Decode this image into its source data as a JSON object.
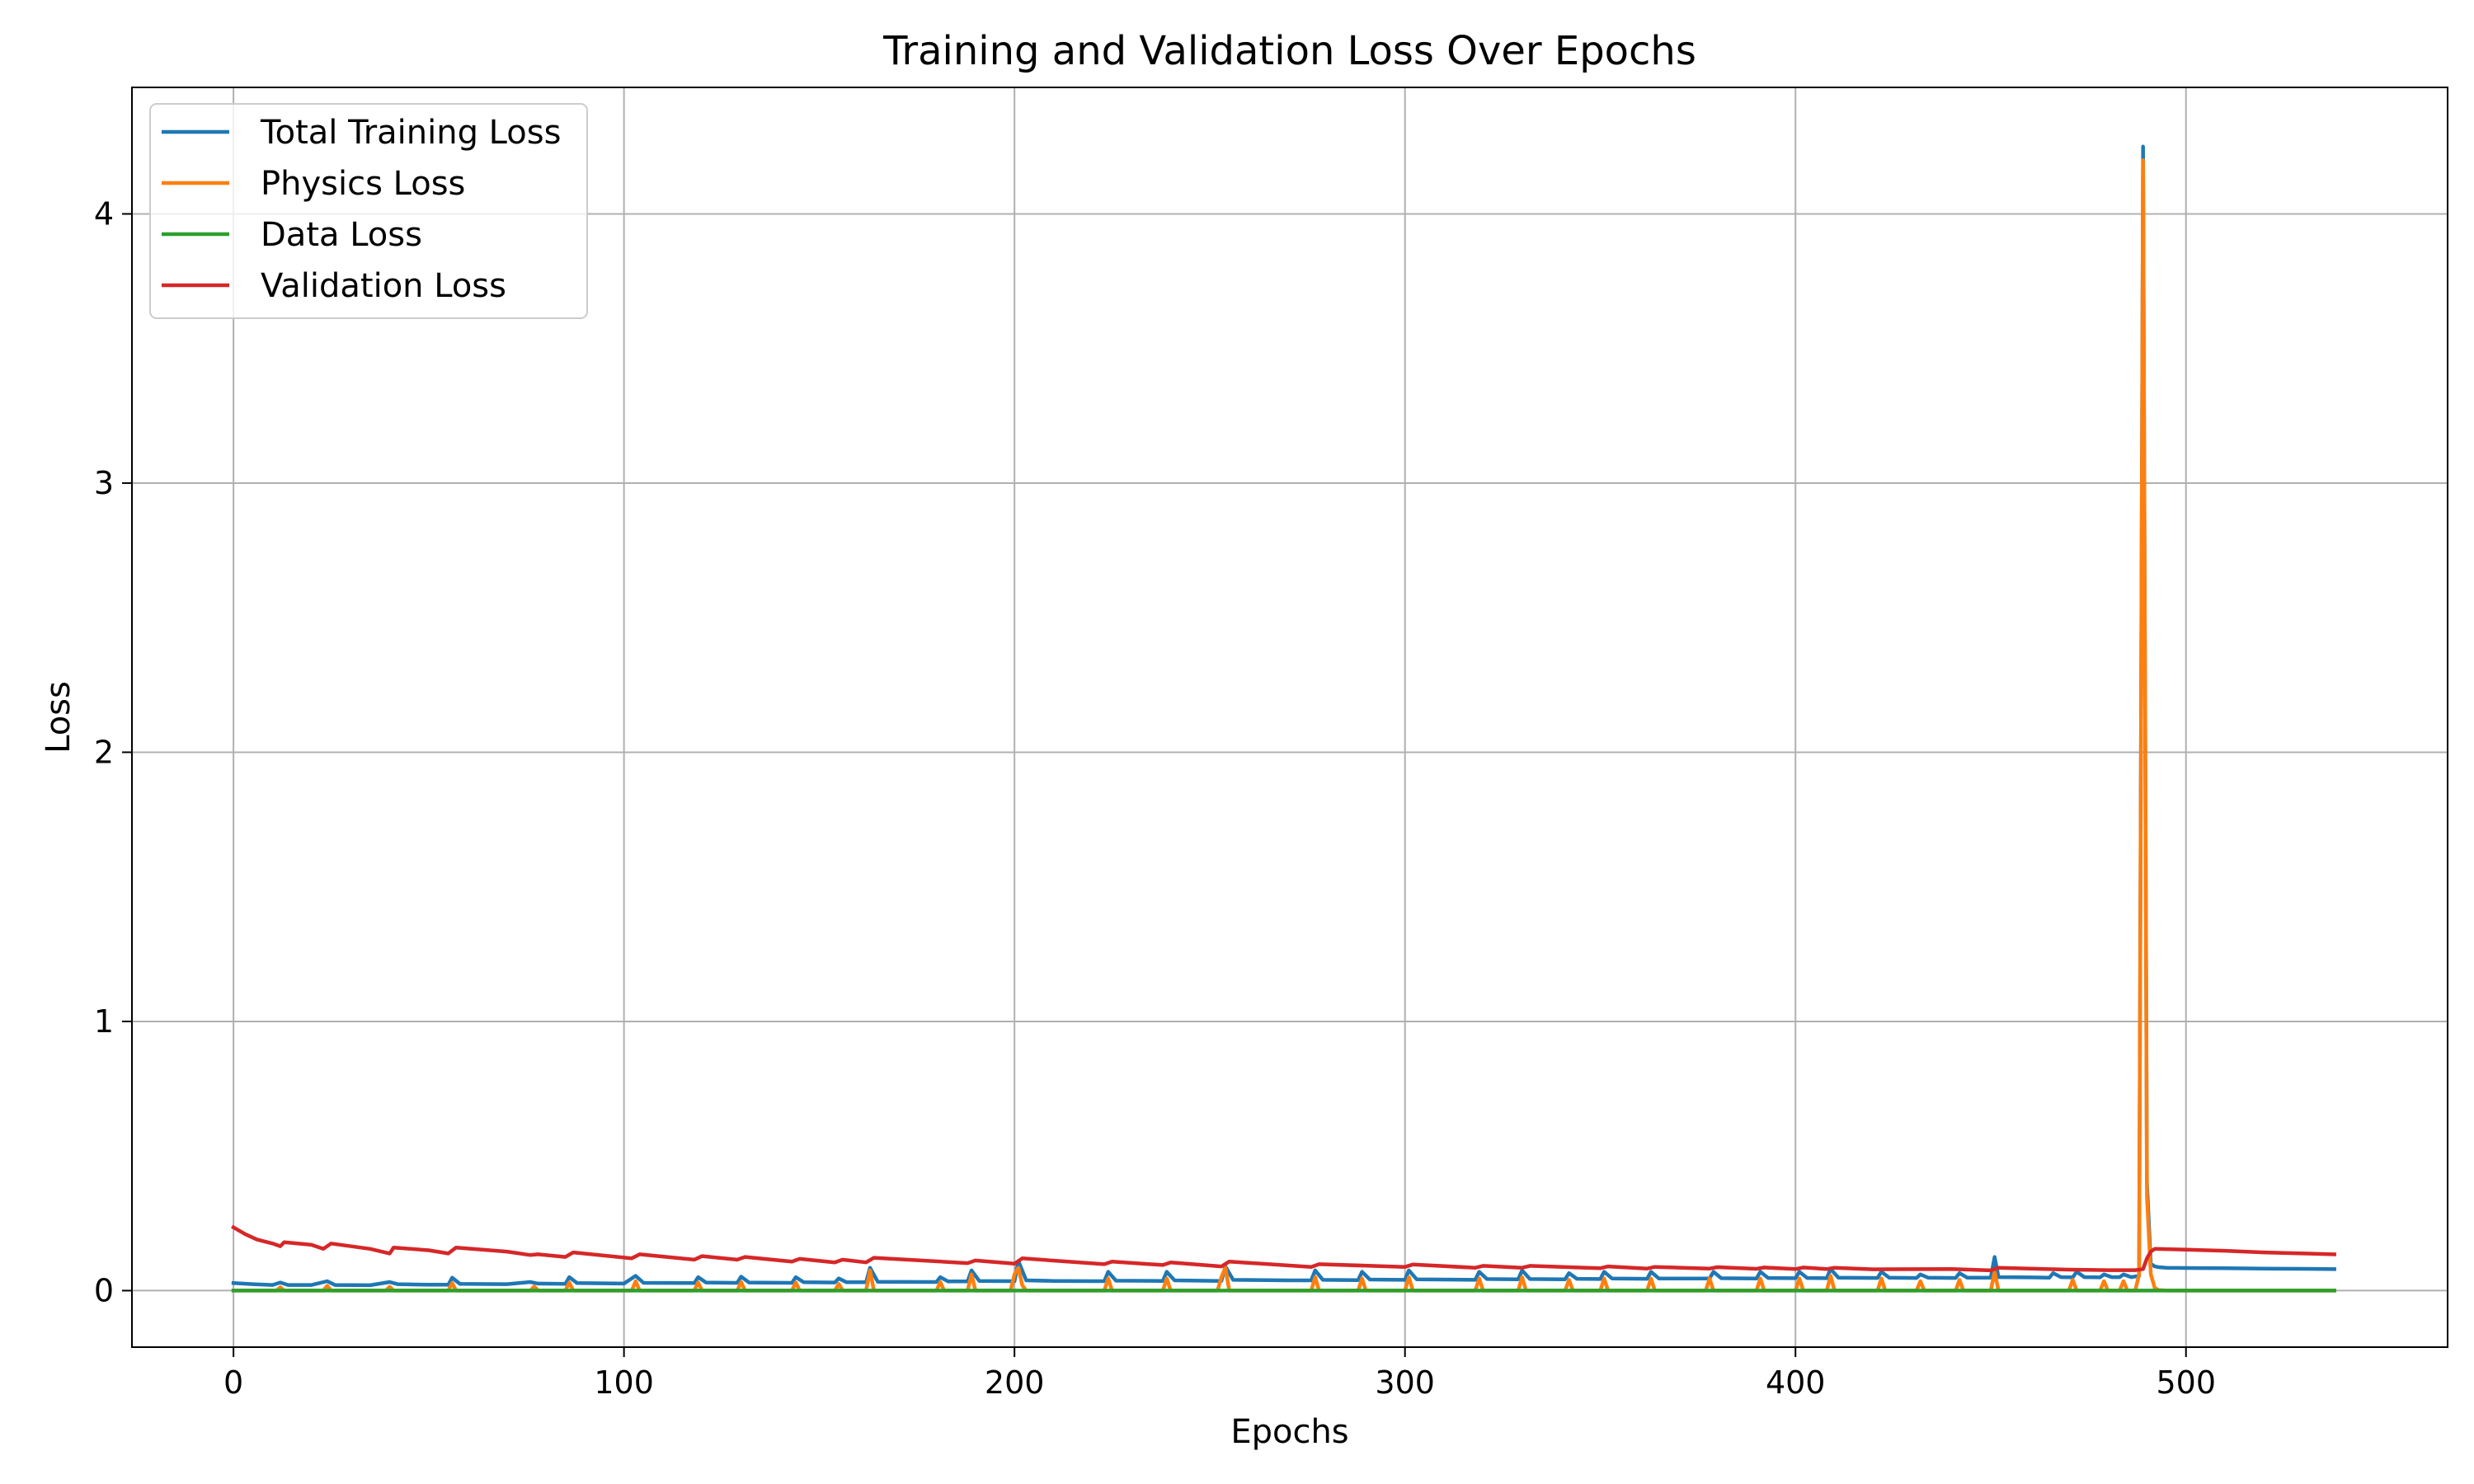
{
  "chart_data": {
    "type": "line",
    "title": "Training and Validation Loss Over Epochs",
    "xlabel": "Epochs",
    "ylabel": "Loss",
    "xlim": [
      -26,
      567
    ],
    "ylim": [
      -0.21,
      4.47
    ],
    "xticks": [
      0,
      100,
      200,
      300,
      400,
      500
    ],
    "yticks": [
      0,
      1,
      2,
      3,
      4
    ],
    "grid": true,
    "legend_position": "top-left",
    "series": [
      {
        "name": "Total Training Loss",
        "color": "#1f77b4",
        "x": [
          0,
          5,
          10,
          12,
          14,
          20,
          24,
          26,
          35,
          40,
          42,
          50,
          55,
          56,
          58,
          70,
          76,
          78,
          85,
          86,
          88,
          100,
          103,
          105,
          118,
          119,
          121,
          129,
          130,
          132,
          143,
          144,
          146,
          154,
          155,
          157,
          162,
          163,
          165,
          180,
          181,
          183,
          188,
          189,
          191,
          200,
          201,
          203,
          210,
          223,
          224,
          226,
          238,
          239,
          241,
          253,
          254,
          256,
          270,
          276,
          277,
          279,
          288,
          289,
          291,
          300,
          301,
          303,
          318,
          319,
          321,
          329,
          330,
          332,
          341,
          342,
          344,
          350,
          351,
          353,
          362,
          363,
          365,
          378,
          379,
          381,
          390,
          391,
          393,
          400,
          401,
          403,
          408,
          409,
          411,
          421,
          422,
          424,
          431,
          432,
          434,
          441,
          442,
          444,
          450,
          451,
          452,
          460,
          465,
          466,
          468,
          471,
          472,
          474,
          478,
          479,
          481,
          483,
          484,
          486,
          488,
          489,
          490,
          491,
          492,
          493,
          495,
          500,
          510,
          520,
          530,
          538
        ],
        "y": [
          0.028,
          0.024,
          0.021,
          0.03,
          0.021,
          0.021,
          0.035,
          0.021,
          0.02,
          0.032,
          0.024,
          0.022,
          0.022,
          0.048,
          0.025,
          0.024,
          0.032,
          0.026,
          0.025,
          0.05,
          0.028,
          0.026,
          0.055,
          0.029,
          0.028,
          0.05,
          0.03,
          0.029,
          0.052,
          0.03,
          0.029,
          0.05,
          0.031,
          0.03,
          0.045,
          0.031,
          0.031,
          0.085,
          0.033,
          0.032,
          0.05,
          0.034,
          0.034,
          0.075,
          0.036,
          0.035,
          0.11,
          0.038,
          0.036,
          0.035,
          0.07,
          0.037,
          0.036,
          0.07,
          0.038,
          0.036,
          0.09,
          0.04,
          0.038,
          0.038,
          0.075,
          0.04,
          0.039,
          0.07,
          0.041,
          0.04,
          0.075,
          0.042,
          0.04,
          0.07,
          0.043,
          0.042,
          0.075,
          0.043,
          0.042,
          0.065,
          0.044,
          0.043,
          0.07,
          0.045,
          0.044,
          0.07,
          0.045,
          0.045,
          0.07,
          0.046,
          0.045,
          0.07,
          0.047,
          0.046,
          0.07,
          0.047,
          0.046,
          0.08,
          0.048,
          0.047,
          0.07,
          0.048,
          0.047,
          0.06,
          0.048,
          0.047,
          0.065,
          0.048,
          0.048,
          0.125,
          0.05,
          0.049,
          0.048,
          0.065,
          0.05,
          0.049,
          0.07,
          0.05,
          0.049,
          0.06,
          0.05,
          0.05,
          0.06,
          0.05,
          0.055,
          4.25,
          0.4,
          0.1,
          0.09,
          0.087,
          0.085,
          0.084,
          0.083,
          0.082,
          0.081,
          0.08
        ]
      },
      {
        "name": "Physics Loss",
        "color": "#ff7f0e",
        "x": [
          0,
          11,
          12,
          13,
          23,
          24,
          25,
          39,
          40,
          41,
          55,
          56,
          57,
          76,
          77,
          78,
          85,
          86,
          87,
          102,
          103,
          104,
          118,
          119,
          120,
          129,
          130,
          131,
          143,
          144,
          145,
          154,
          155,
          156,
          162,
          163,
          164,
          180,
          181,
          182,
          188,
          189,
          190,
          199,
          200,
          201,
          202,
          203,
          223,
          224,
          225,
          238,
          239,
          240,
          252,
          253,
          254,
          255,
          276,
          277,
          278,
          288,
          289,
          290,
          300,
          301,
          302,
          318,
          319,
          320,
          329,
          330,
          331,
          341,
          342,
          343,
          350,
          351,
          352,
          362,
          363,
          364,
          377,
          378,
          379,
          390,
          391,
          392,
          400,
          401,
          402,
          408,
          409,
          410,
          421,
          422,
          423,
          431,
          432,
          433,
          441,
          442,
          443,
          450,
          451,
          452,
          470,
          471,
          472,
          478,
          479,
          480,
          483,
          484,
          485,
          487,
          488,
          489,
          490,
          491,
          492,
          493,
          495,
          500,
          538
        ],
        "y": [
          0.0,
          0.0,
          0.012,
          0.0,
          0.0,
          0.018,
          0.0,
          0.0,
          0.014,
          0.0,
          0.0,
          0.028,
          0.0,
          0.0,
          0.015,
          0.0,
          0.0,
          0.03,
          0.0,
          0.0,
          0.035,
          0.0,
          0.0,
          0.03,
          0.0,
          0.0,
          0.032,
          0.0,
          0.0,
          0.03,
          0.0,
          0.0,
          0.025,
          0.0,
          0.0,
          0.075,
          0.0,
          0.0,
          0.032,
          0.0,
          0.0,
          0.06,
          0.0,
          0.0,
          0.06,
          0.085,
          0.02,
          0.0,
          0.0,
          0.045,
          0.0,
          0.0,
          0.045,
          0.0,
          0.0,
          0.05,
          0.085,
          0.0,
          0.0,
          0.05,
          0.0,
          0.0,
          0.045,
          0.0,
          0.0,
          0.05,
          0.0,
          0.0,
          0.045,
          0.0,
          0.0,
          0.05,
          0.0,
          0.0,
          0.04,
          0.0,
          0.0,
          0.045,
          0.0,
          0.0,
          0.045,
          0.0,
          0.0,
          0.045,
          0.0,
          0.0,
          0.045,
          0.0,
          0.0,
          0.045,
          0.0,
          0.0,
          0.055,
          0.0,
          0.0,
          0.045,
          0.0,
          0.0,
          0.035,
          0.0,
          0.0,
          0.04,
          0.0,
          0.0,
          0.07,
          0.0,
          0.0,
          0.04,
          0.0,
          0.0,
          0.035,
          0.0,
          0.0,
          0.035,
          0.0,
          0.0,
          0.06,
          4.2,
          0.35,
          0.06,
          0.01,
          0.002,
          0.0,
          0.0,
          0.0
        ]
      },
      {
        "name": "Data Loss",
        "color": "#2ca02c",
        "x": [
          0,
          488,
          489,
          490,
          492,
          538
        ],
        "y": [
          0.0,
          0.0,
          0.0,
          0.0,
          0.0,
          0.0
        ]
      },
      {
        "name": "Validation Loss",
        "color": "#d62728",
        "x": [
          0,
          3,
          6,
          10,
          12,
          13,
          20,
          23,
          25,
          35,
          40,
          41,
          50,
          55,
          57,
          70,
          76,
          78,
          85,
          87,
          102,
          104,
          118,
          120,
          129,
          131,
          143,
          145,
          154,
          156,
          162,
          164,
          188,
          190,
          200,
          202,
          223,
          225,
          238,
          240,
          253,
          255,
          276,
          278,
          300,
          302,
          318,
          320,
          330,
          332,
          350,
          352,
          362,
          364,
          378,
          380,
          390,
          392,
          400,
          402,
          408,
          410,
          420,
          440,
          450,
          452,
          470,
          480,
          487,
          489,
          490,
          491,
          492,
          500,
          510,
          520,
          530,
          538
        ],
        "y": [
          0.235,
          0.21,
          0.19,
          0.175,
          0.165,
          0.18,
          0.17,
          0.155,
          0.175,
          0.155,
          0.138,
          0.16,
          0.15,
          0.138,
          0.16,
          0.145,
          0.132,
          0.135,
          0.125,
          0.142,
          0.12,
          0.135,
          0.115,
          0.128,
          0.115,
          0.125,
          0.108,
          0.118,
          0.105,
          0.115,
          0.105,
          0.122,
          0.102,
          0.112,
          0.1,
          0.12,
          0.098,
          0.108,
          0.095,
          0.105,
          0.09,
          0.108,
          0.088,
          0.098,
          0.088,
          0.097,
          0.085,
          0.092,
          0.085,
          0.092,
          0.083,
          0.09,
          0.082,
          0.088,
          0.082,
          0.087,
          0.081,
          0.086,
          0.08,
          0.086,
          0.08,
          0.085,
          0.079,
          0.08,
          0.075,
          0.085,
          0.078,
          0.076,
          0.076,
          0.08,
          0.12,
          0.145,
          0.155,
          0.152,
          0.148,
          0.142,
          0.138,
          0.135
        ]
      }
    ]
  }
}
